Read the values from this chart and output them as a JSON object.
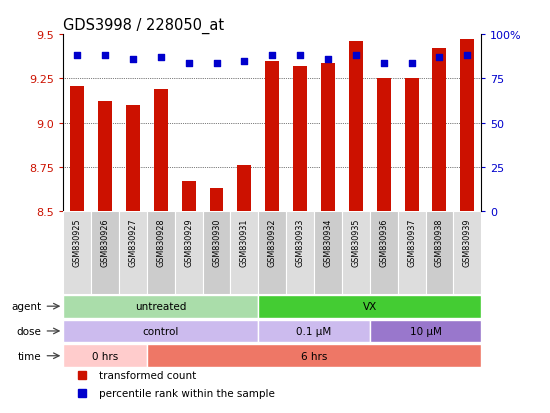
{
  "title": "GDS3998 / 228050_at",
  "samples": [
    "GSM830925",
    "GSM830926",
    "GSM830927",
    "GSM830928",
    "GSM830929",
    "GSM830930",
    "GSM830931",
    "GSM830932",
    "GSM830933",
    "GSM830934",
    "GSM830935",
    "GSM830936",
    "GSM830937",
    "GSM830938",
    "GSM830939"
  ],
  "bar_values": [
    9.21,
    9.12,
    9.1,
    9.19,
    8.67,
    8.63,
    8.76,
    9.35,
    9.32,
    9.34,
    9.46,
    9.25,
    9.25,
    9.42,
    9.47
  ],
  "percentile_values": [
    88,
    88,
    86,
    87,
    84,
    84,
    85,
    88,
    88,
    86,
    88,
    84,
    84,
    87,
    88
  ],
  "ylim_left": [
    8.5,
    9.5
  ],
  "ylim_right": [
    0,
    100
  ],
  "yticks_left": [
    8.5,
    8.75,
    9.0,
    9.25,
    9.5
  ],
  "yticks_right": [
    0,
    25,
    50,
    75,
    100
  ],
  "bar_color": "#cc1100",
  "dot_color": "#0000cc",
  "agent_groups": [
    {
      "label": "untreated",
      "start": 0,
      "end": 7,
      "color": "#aaddaa"
    },
    {
      "label": "VX",
      "start": 7,
      "end": 15,
      "color": "#44cc33"
    }
  ],
  "dose_groups": [
    {
      "label": "control",
      "start": 0,
      "end": 7,
      "color": "#ccbbee"
    },
    {
      "label": "0.1 μM",
      "start": 7,
      "end": 11,
      "color": "#ccbbee"
    },
    {
      "label": "10 μM",
      "start": 11,
      "end": 15,
      "color": "#9977cc"
    }
  ],
  "time_groups": [
    {
      "label": "0 hrs",
      "start": 0,
      "end": 3,
      "color": "#ffcccc"
    },
    {
      "label": "6 hrs",
      "start": 3,
      "end": 15,
      "color": "#ee7766"
    }
  ],
  "legend_items": [
    {
      "color": "#cc1100",
      "label": "transformed count"
    },
    {
      "color": "#0000cc",
      "label": "percentile rank within the sample"
    }
  ],
  "sample_label_bg_even": "#dddddd",
  "sample_label_bg_odd": "#cccccc",
  "main_bg": "#ffffff",
  "grid_color": "#000000",
  "grid_linestyle": ":"
}
